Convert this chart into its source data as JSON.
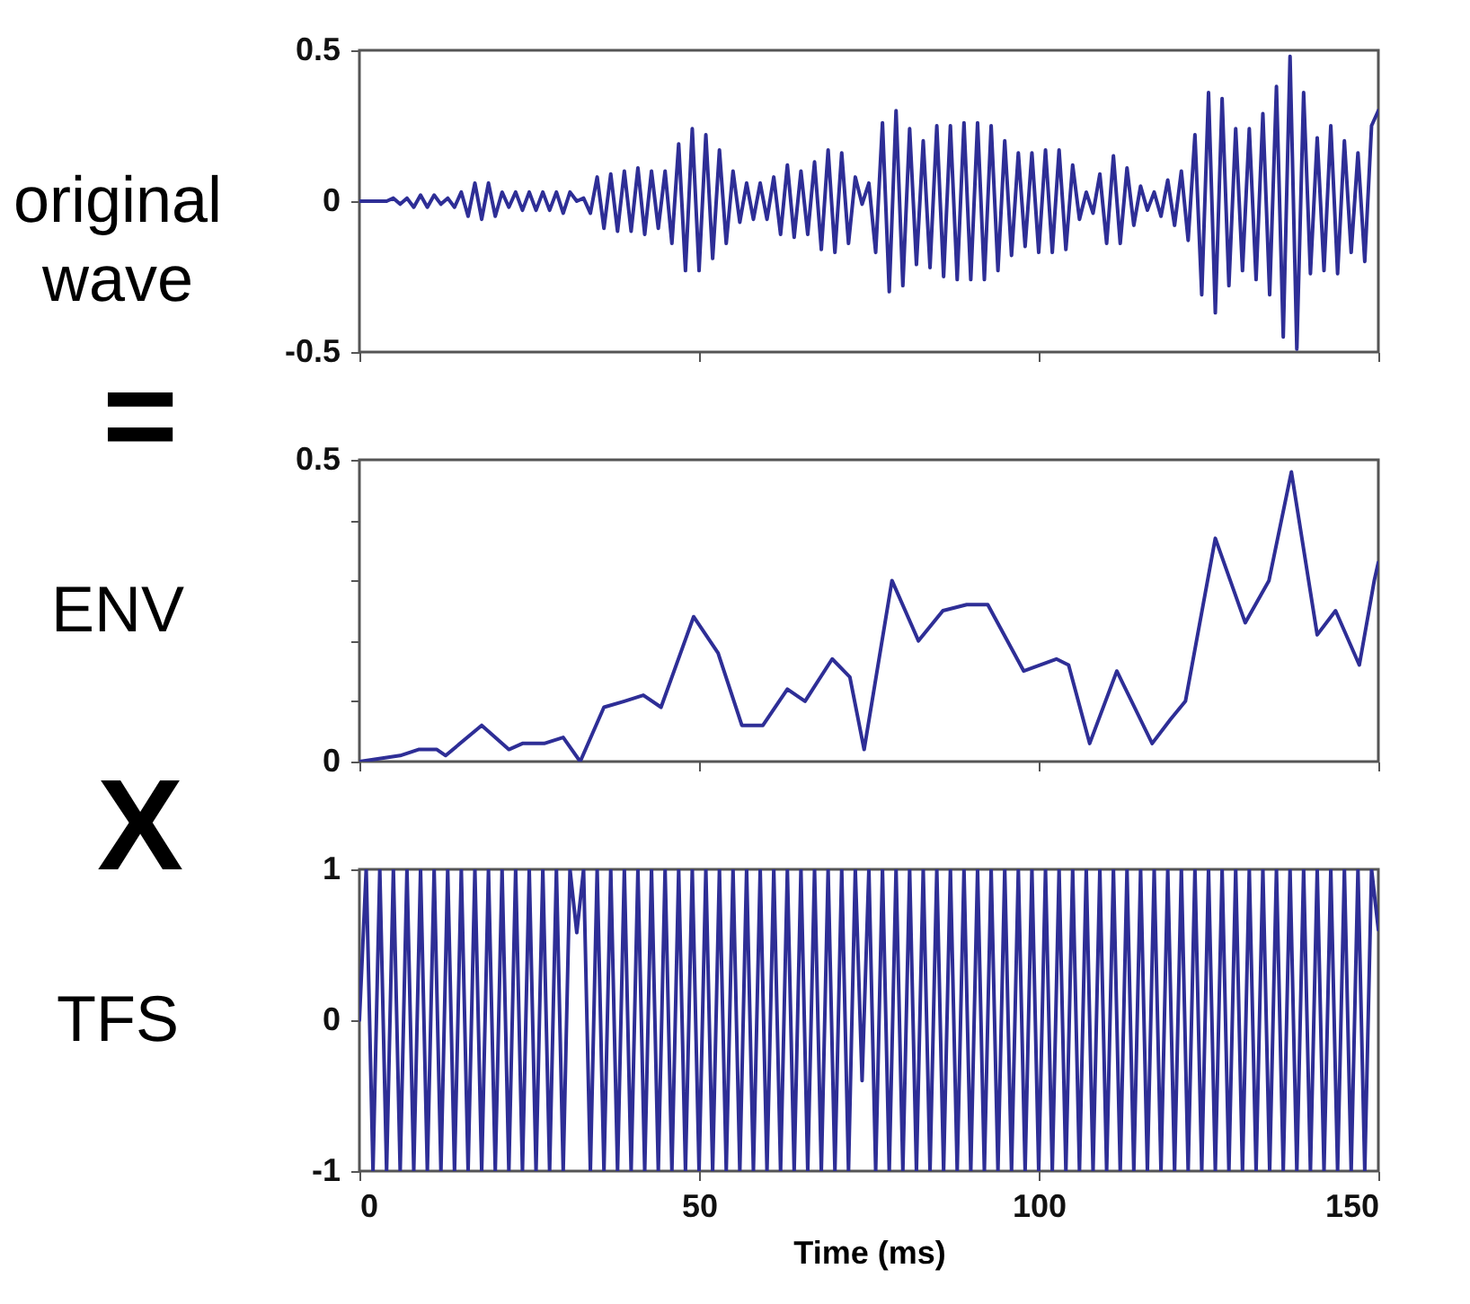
{
  "chart_data": [
    {
      "type": "line",
      "ylabel": "original wave",
      "tick_labels": "y",
      "xlim": [
        0,
        150
      ],
      "xticks": [
        0,
        50,
        100,
        150
      ],
      "ylim": [
        -0.5,
        0.5
      ],
      "yticks": [
        -0.5,
        0,
        0.5
      ],
      "x": [
        0,
        1,
        2,
        3,
        4,
        5,
        6,
        7,
        8,
        9,
        10,
        11,
        12,
        13,
        14,
        15,
        16,
        17,
        18,
        19,
        20,
        21,
        22,
        23,
        24,
        25,
        26,
        27,
        28,
        29,
        30,
        31,
        32,
        33,
        34,
        35,
        36,
        37,
        38,
        39,
        40,
        41,
        42,
        43,
        44,
        45,
        46,
        47,
        48,
        49,
        50,
        51,
        52,
        53,
        54,
        55,
        56,
        57,
        58,
        59,
        60,
        61,
        62,
        63,
        64,
        65,
        66,
        67,
        68,
        69,
        70,
        71,
        72,
        73,
        74,
        75,
        76,
        77,
        78,
        79,
        80,
        81,
        82,
        83,
        84,
        85,
        86,
        87,
        88,
        89,
        90,
        91,
        92,
        93,
        94,
        95,
        96,
        97,
        98,
        99,
        100,
        101,
        102,
        103,
        104,
        105,
        106,
        107,
        108,
        109,
        110,
        111,
        112,
        113,
        114,
        115,
        116,
        117,
        118,
        119,
        120,
        121,
        122,
        123,
        124,
        125,
        126,
        127,
        128,
        129,
        130,
        131,
        132,
        133,
        134,
        135,
        136,
        137,
        138,
        139,
        140,
        141,
        142,
        143,
        144,
        145,
        146,
        147,
        148,
        149,
        150
      ],
      "series": [
        {
          "color": "#2e2e96",
          "values": [
            0,
            0,
            0,
            0,
            0,
            0.01,
            -0.01,
            0.01,
            -0.02,
            0.02,
            -0.02,
            0.02,
            -0.01,
            0.01,
            -0.02,
            0.03,
            -0.05,
            0.06,
            -0.06,
            0.06,
            -0.05,
            0.03,
            -0.02,
            0.03,
            -0.03,
            0.03,
            -0.03,
            0.03,
            -0.03,
            0.03,
            -0.04,
            0.03,
            0,
            0.01,
            -0.04,
            0.08,
            -0.09,
            0.09,
            -0.1,
            0.1,
            -0.1,
            0.11,
            -0.11,
            0.1,
            -0.09,
            0.1,
            -0.14,
            0.19,
            -0.23,
            0.24,
            -0.23,
            0.22,
            -0.19,
            0.17,
            -0.14,
            0.1,
            -0.07,
            0.06,
            -0.06,
            0.06,
            -0.06,
            0.08,
            -0.11,
            0.12,
            -0.12,
            0.1,
            -0.11,
            0.13,
            -0.16,
            0.17,
            -0.17,
            0.16,
            -0.14,
            0.08,
            -0.01,
            0.06,
            -0.17,
            0.26,
            -0.3,
            0.3,
            -0.28,
            0.24,
            -0.21,
            0.2,
            -0.22,
            0.25,
            -0.25,
            0.25,
            -0.26,
            0.26,
            -0.26,
            0.26,
            -0.26,
            0.25,
            -0.23,
            0.2,
            -0.18,
            0.16,
            -0.15,
            0.16,
            -0.17,
            0.17,
            -0.17,
            0.17,
            -0.16,
            0.12,
            -0.06,
            0.03,
            -0.04,
            0.09,
            -0.14,
            0.15,
            -0.14,
            0.11,
            -0.08,
            0.05,
            -0.03,
            0.03,
            -0.05,
            0.07,
            -0.08,
            0.1,
            -0.13,
            0.22,
            -0.31,
            0.36,
            -0.37,
            0.34,
            -0.28,
            0.24,
            -0.23,
            0.24,
            -0.26,
            0.29,
            -0.31,
            0.38,
            -0.45,
            0.48,
            -0.49,
            0.36,
            -0.24,
            0.21,
            -0.23,
            0.25,
            -0.24,
            0.2,
            -0.17,
            0.16,
            -0.2,
            0.25,
            0.3
          ]
        }
      ]
    },
    {
      "type": "line",
      "ylabel": "ENV",
      "annotations": [
        "="
      ],
      "tick_labels": "y",
      "xlim": [
        0,
        150
      ],
      "xticks": [
        0,
        50,
        100,
        150
      ],
      "ylim": [
        0,
        0.5
      ],
      "yticks": [
        0,
        {
          "value": 0.1,
          "label": null
        },
        {
          "value": 0.2,
          "label": null
        },
        {
          "value": 0.3,
          "label": null
        },
        {
          "value": 0.4,
          "label": null
        },
        0.5
      ],
      "x": [
        0,
        6,
        8.7,
        11.4,
        12.7,
        18,
        22,
        24,
        27.2,
        30,
        32.5,
        36,
        39,
        41.8,
        44.4,
        49.2,
        52.8,
        56.3,
        59.4,
        63,
        65.6,
        69.6,
        72.2,
        74.3,
        78.4,
        82.3,
        85.9,
        89.4,
        92.5,
        97.8,
        102.6,
        104.4,
        107.5,
        111.5,
        116.7,
        119.4,
        121.6,
        126,
        130.4,
        133.9,
        137.2,
        141,
        143.7,
        147.2,
        149.4,
        150
      ],
      "series": [
        {
          "color": "#2e2e96",
          "values": [
            0,
            0.01,
            0.02,
            0.02,
            0.01,
            0.06,
            0.02,
            0.03,
            0.03,
            0.04,
            0,
            0.09,
            0.1,
            0.11,
            0.09,
            0.24,
            0.18,
            0.06,
            0.06,
            0.12,
            0.1,
            0.17,
            0.14,
            0.02,
            0.3,
            0.2,
            0.25,
            0.26,
            0.26,
            0.15,
            0.17,
            0.16,
            0.03,
            0.15,
            0.03,
            0.07,
            0.1,
            0.37,
            0.23,
            0.3,
            0.48,
            0.21,
            0.25,
            0.16,
            0.3,
            0.33
          ]
        }
      ]
    },
    {
      "type": "line",
      "ylabel": "TFS",
      "xlabel": "Time (ms)",
      "annotations": [
        "X"
      ],
      "xlim": [
        0,
        150
      ],
      "xticks": [
        0,
        50,
        100,
        150
      ],
      "ylim": [
        -1,
        1
      ],
      "yticks": [
        -1,
        0,
        1
      ],
      "x": [
        0,
        1,
        2,
        3,
        4,
        5,
        6,
        7,
        8,
        9,
        10,
        11,
        12,
        13,
        14,
        15,
        16,
        17,
        18,
        19,
        20,
        21,
        22,
        23,
        24,
        25,
        26,
        27,
        28,
        29,
        30,
        31,
        32,
        33,
        34,
        35,
        36,
        37,
        38,
        39,
        40,
        41,
        42,
        43,
        44,
        45,
        46,
        47,
        48,
        49,
        50,
        51,
        52,
        53,
        54,
        55,
        56,
        57,
        58,
        59,
        60,
        61,
        62,
        63,
        64,
        65,
        66,
        67,
        68,
        69,
        70,
        71,
        72,
        73,
        74,
        75,
        76,
        77,
        78,
        79,
        80,
        81,
        82,
        83,
        84,
        85,
        86,
        87,
        88,
        89,
        90,
        91,
        92,
        93,
        94,
        95,
        96,
        97,
        98,
        99,
        100,
        101,
        102,
        103,
        104,
        105,
        106,
        107,
        108,
        109,
        110,
        111,
        112,
        113,
        114,
        115,
        116,
        117,
        118,
        119,
        120,
        121,
        122,
        123,
        124,
        125,
        126,
        127,
        128,
        129,
        130,
        131,
        132,
        133,
        134,
        135,
        136,
        137,
        138,
        139,
        140,
        141,
        142,
        143,
        144,
        145,
        146,
        147,
        148,
        149,
        150
      ],
      "series": [
        {
          "color": "#2e2e96",
          "values": [
            0,
            1,
            -1,
            1,
            -1,
            1,
            -1,
            1,
            -1,
            1,
            -1,
            1,
            -1,
            1,
            -1,
            1,
            -1,
            1,
            -1,
            1,
            -1,
            1,
            -1,
            1,
            -1,
            1,
            -1,
            1,
            -1,
            1,
            -1,
            1,
            0.58,
            1,
            -1,
            1,
            -1,
            1,
            -1,
            1,
            -1,
            1,
            -1,
            1,
            -1,
            1,
            -1,
            1,
            -1,
            1,
            -1,
            1,
            -1,
            1,
            -1,
            1,
            -1,
            1,
            -1,
            1,
            -1,
            1,
            -1,
            1,
            -1,
            1,
            -1,
            1,
            -1,
            1,
            -1,
            1,
            -1,
            1,
            -0.4,
            1,
            -1,
            1,
            -1,
            1,
            -1,
            1,
            -1,
            1,
            -1,
            1,
            -1,
            1,
            -1,
            1,
            -1,
            1,
            -1,
            1,
            -1,
            1,
            -1,
            1,
            -1,
            1,
            -1,
            1,
            -1,
            1,
            -1,
            1,
            -1,
            1,
            -1,
            1,
            -1,
            1,
            -1,
            1,
            -1,
            1,
            -1,
            1,
            -1,
            1,
            -1,
            1,
            -1,
            1,
            -1,
            1,
            -1,
            1,
            -1,
            1,
            -1,
            1,
            -1,
            1,
            -1,
            1,
            -1,
            1,
            -1,
            1,
            -1,
            1,
            -1,
            1,
            -1,
            1,
            -1,
            1,
            -1,
            1,
            0.6
          ]
        }
      ]
    }
  ]
}
